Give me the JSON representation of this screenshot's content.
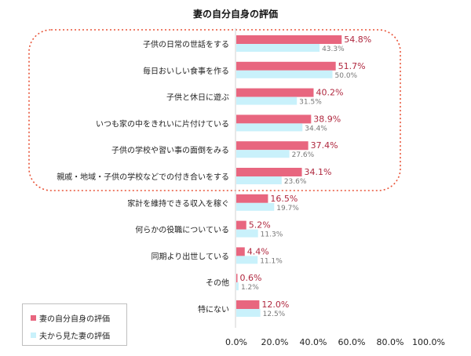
{
  "colors": {
    "series_self": "#e8667f",
    "series_husband": "#c9f1fb",
    "label_self": "#b0283f",
    "label_husband": "#777777",
    "highlight_border": "#e8553a"
  },
  "chart_data": {
    "type": "bar",
    "orientation": "horizontal",
    "title": "妻の自分自身の評価",
    "categories": [
      "子供の日常の世話をする",
      "毎日おいしい食事を作る",
      "子供と休日に遊ぶ",
      "いつも家の中をきれいに片付けている",
      "子供の学校や習い事の面倒をみる",
      "親戚・地域・子供の学校などでの付き合いをする",
      "家計を維持できる収入を稼ぐ",
      "何らかの役職についている",
      "同期より出世している",
      "その他",
      "特にない"
    ],
    "series": [
      {
        "name": "妻の自分自身の評価",
        "values": [
          54.8,
          51.7,
          40.2,
          38.9,
          37.4,
          34.1,
          16.5,
          5.2,
          4.4,
          0.6,
          12.0
        ],
        "labels": [
          "54.8%",
          "51.7%",
          "40.2%",
          "38.9%",
          "37.4%",
          "34.1%",
          "16.5%",
          "5.2%",
          "4.4%",
          "0.6%",
          "12.0%"
        ]
      },
      {
        "name": "夫から見た妻の評価",
        "values": [
          43.3,
          50.0,
          31.5,
          34.4,
          27.6,
          23.6,
          19.7,
          11.3,
          11.1,
          1.2,
          12.5
        ],
        "labels": [
          "43.3%",
          "50.0%",
          "31.5%",
          "34.4%",
          "27.6%",
          "23.6%",
          "19.7%",
          "11.3%",
          "11.1%",
          "1.2%",
          "12.5%"
        ]
      }
    ],
    "xlim": [
      0,
      100
    ],
    "xticks": [
      "0.0%",
      "20.0%",
      "40.0%",
      "60.0%",
      "80.0%",
      "100.0%"
    ],
    "highlighted_categories": 6,
    "grid": false,
    "legend_position": "bottom-left"
  }
}
